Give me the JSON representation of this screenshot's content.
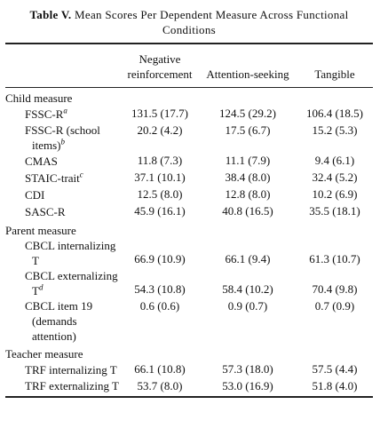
{
  "table": {
    "title_label": "Table V.",
    "title": "Mean Scores Per Dependent Measure Across Functional Conditions",
    "columns": [
      "Negative reinforcement",
      "Attention-seeking",
      "Tangible"
    ],
    "sections": [
      {
        "heading": "Child measure",
        "rows": [
          {
            "label": "FSSC-R",
            "note": "a",
            "cells": [
              "131.5 (17.7)",
              "124.5 (29.2)",
              "106.4 (18.5)"
            ]
          },
          {
            "label": "FSSC-R (school items)",
            "note": "b",
            "cells": [
              "20.2 (4.2)",
              "17.5 (6.7)",
              "15.2 (5.3)"
            ]
          },
          {
            "label": "CMAS",
            "cells": [
              "11.8 (7.3)",
              "11.1 (7.9)",
              "9.4 (6.1)"
            ]
          },
          {
            "label": "STAIC-trait",
            "note": "c",
            "cells": [
              "37.1 (10.1)",
              "38.4 (8.0)",
              "32.4 (5.2)"
            ]
          },
          {
            "label": "CDI",
            "cells": [
              "12.5 (8.0)",
              "12.8 (8.0)",
              "10.2 (6.9)"
            ]
          },
          {
            "label": "SASC-R",
            "cells": [
              "45.9 (16.1)",
              "40.8 (16.5)",
              "35.5 (18.1)"
            ]
          }
        ]
      },
      {
        "heading": "Parent measure",
        "rows": [
          {
            "label": "CBCL internalizing T",
            "cells": [
              "66.9 (10.9)",
              "66.1 (9.4)",
              "61.3 (10.7)"
            ]
          },
          {
            "label": "CBCL externalizing T",
            "note": "d",
            "cells": [
              "54.3 (10.8)",
              "58.4 (10.2)",
              "70.4 (9.8)"
            ]
          },
          {
            "label": "CBCL item 19 (demands attention)",
            "cells": [
              "0.6 (0.6)",
              "0.9 (0.7)",
              "0.7 (0.9)"
            ]
          }
        ]
      },
      {
        "heading": "Teacher measure",
        "rows": [
          {
            "label": "TRF internalizing T",
            "cells": [
              "66.1 (10.8)",
              "57.3 (18.0)",
              "57.5 (4.4)"
            ]
          },
          {
            "label": "TRF externalizing T",
            "cells": [
              "53.7 (8.0)",
              "53.0 (16.9)",
              "51.8 (4.0)"
            ]
          }
        ]
      }
    ]
  }
}
